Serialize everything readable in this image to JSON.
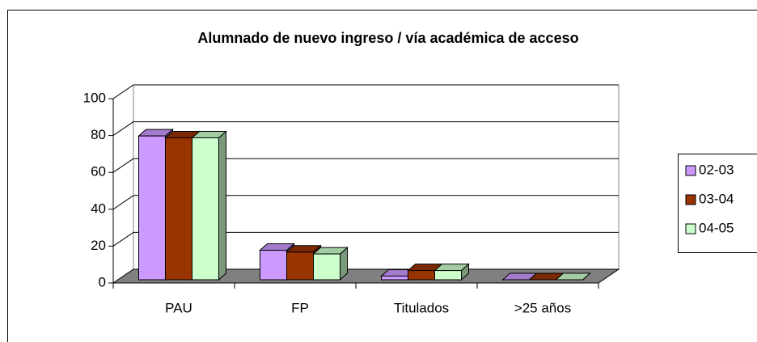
{
  "chart_data": {
    "type": "bar3d",
    "title": "Alumnado de nuevo ingreso / vía académica de acceso",
    "categories": [
      "PAU",
      "FP",
      "Titulados",
      ">25 años"
    ],
    "series": [
      {
        "name": "02-03",
        "color": "#cc99ff",
        "values": [
          78,
          16,
          2,
          0
        ]
      },
      {
        "name": "03-04",
        "color": "#993300",
        "values": [
          77,
          15,
          5,
          0
        ]
      },
      {
        "name": "04-05",
        "color": "#ccffcc",
        "values": [
          77,
          14,
          5,
          0
        ]
      }
    ],
    "ylim": [
      0,
      100
    ],
    "yticks": [
      0,
      20,
      40,
      60,
      80,
      100
    ],
    "grid": true,
    "legend": "right"
  }
}
